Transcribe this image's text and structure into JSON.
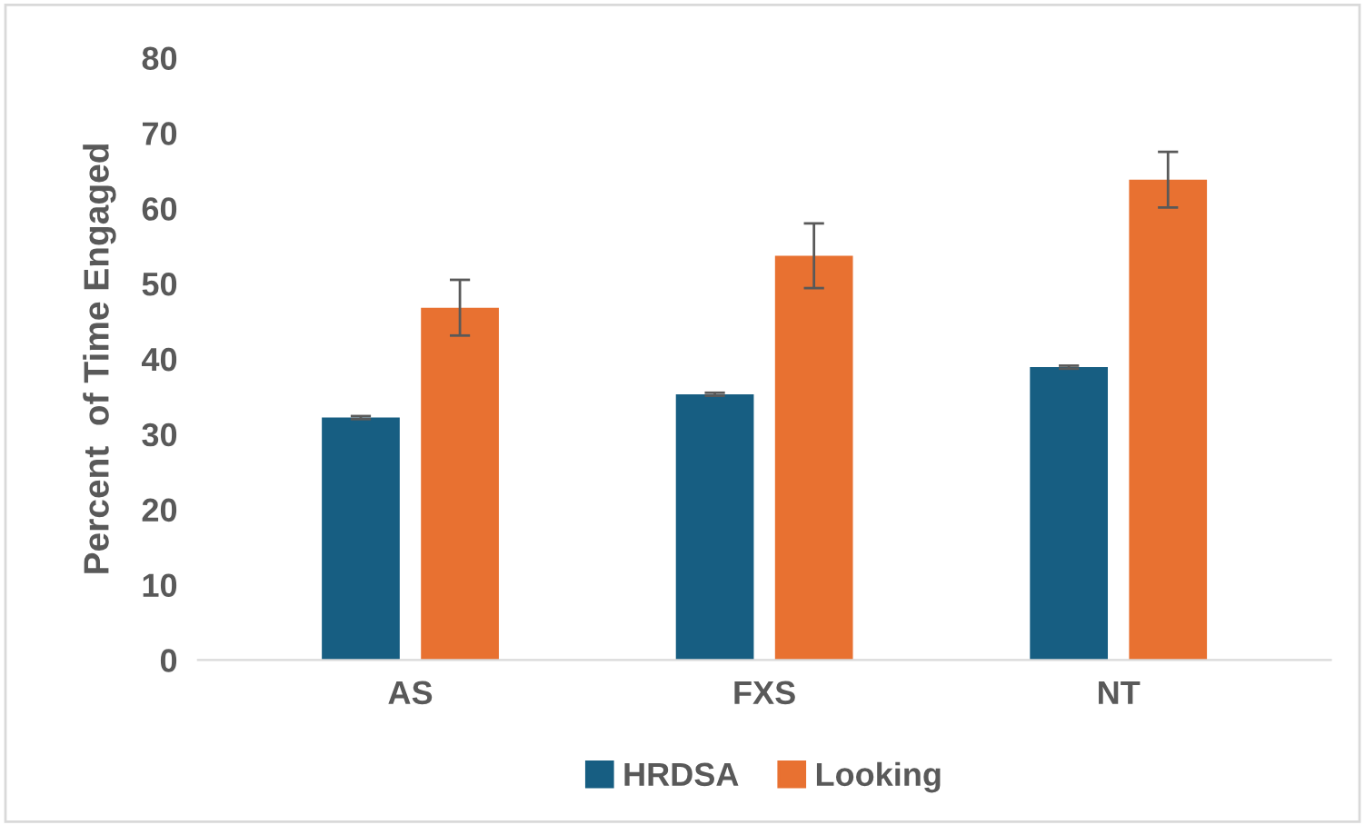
{
  "chart_data": {
    "type": "bar",
    "ylabel": "Percent  of Time Engaged",
    "categories": [
      "AS",
      "FXS",
      "NT"
    ],
    "series": [
      {
        "name": "HRDSA",
        "color": "#175e82",
        "values": [
          32.2,
          35.3,
          38.9
        ],
        "errors": [
          0.2,
          0.2,
          0.2
        ]
      },
      {
        "name": "Looking",
        "color": "#e87131",
        "values": [
          46.8,
          53.7,
          63.8
        ],
        "errors": [
          3.7,
          4.3,
          3.7
        ]
      }
    ],
    "ylim": [
      0,
      80
    ],
    "yticks": [
      0,
      10,
      20,
      30,
      40,
      50,
      60,
      70,
      80
    ],
    "grid": false,
    "legend": "bottom"
  }
}
